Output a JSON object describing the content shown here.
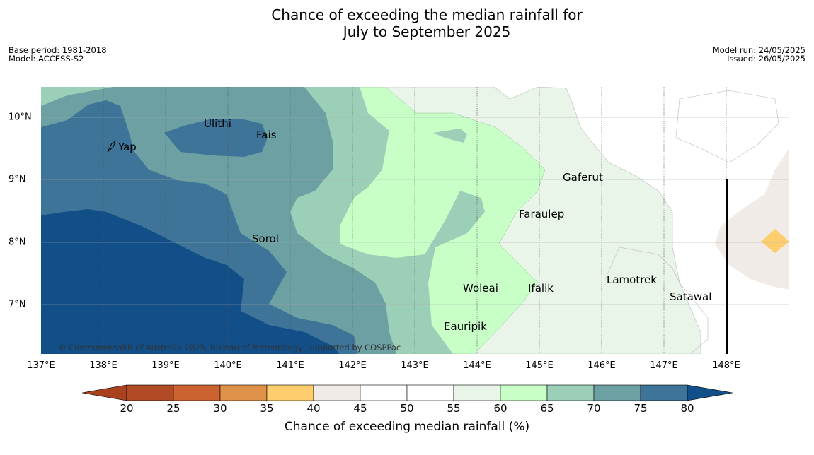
{
  "title_line1": "Chance of exceeding the median rainfall for",
  "title_line2": "July to September 2025",
  "meta": {
    "base_period": "Base period: 1981-2018",
    "model": "Model: ACCESS-S2",
    "model_run": "Model run: 24/05/2025",
    "issued": "Issued: 26/05/2025"
  },
  "map": {
    "x_ticks": [
      "137°E",
      "138°E",
      "139°E",
      "140°E",
      "141°E",
      "142°E",
      "143°E",
      "144°E",
      "145°E",
      "146°E",
      "147°E",
      "148°E"
    ],
    "y_ticks": [
      "10°N",
      "9°N",
      "8°N",
      "7°N"
    ],
    "places": [
      "Yap",
      "Ulithi",
      "Fais",
      "Sorol",
      "Gaferut",
      "Faraulep",
      "Woleai",
      "Ifalik",
      "Lamotrek",
      "Satawal",
      "Eauripik"
    ],
    "copyright": "© Commonwealth of Australia 2025, Bureau of Meteorology, supported by COSPPac"
  },
  "colorbar": {
    "ticks": [
      "20",
      "25",
      "30",
      "35",
      "40",
      "45",
      "50",
      "55",
      "60",
      "65",
      "70",
      "75",
      "80"
    ],
    "colors": [
      "#a9411f",
      "#b24a26",
      "#cc6230",
      "#e0914a",
      "#fdcd6e",
      "#f0ebe6",
      "#ffffff",
      "#ffffff",
      "#e9f5e9",
      "#c7ffc7",
      "#9ccfb7",
      "#6ca0a2",
      "#3e7497",
      "#124e87"
    ],
    "label": "Chance of exceeding median rainfall (%)"
  }
}
